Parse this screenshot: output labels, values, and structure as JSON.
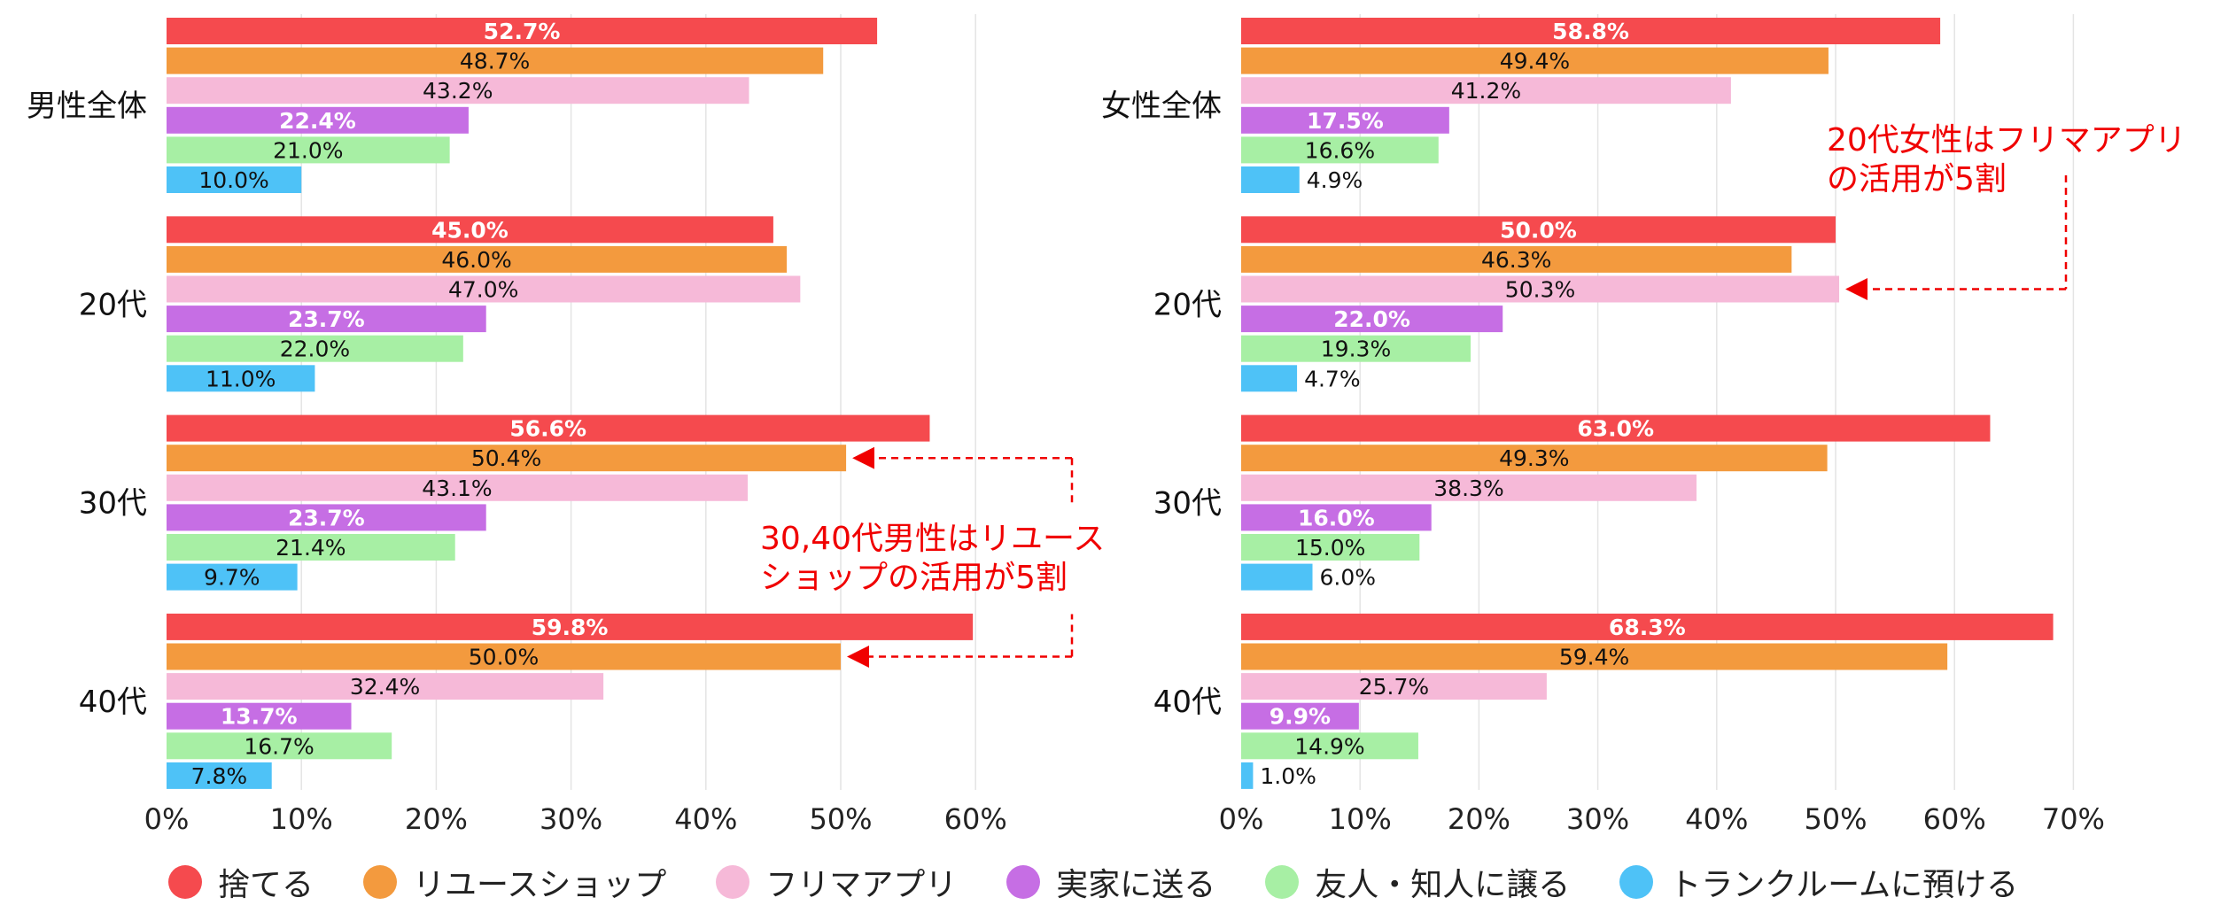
{
  "chart_data": {
    "type": "bar",
    "orientation": "horizontal",
    "series_names": [
      "捨てる",
      "リユースショップ",
      "フリマアプリ",
      "実家に送る",
      "友人・知人に譲る",
      "トランクルームに預ける"
    ],
    "colors": [
      "#f54a4e",
      "#f39a3e",
      "#f6b9d8",
      "#c66ee4",
      "#a7efa4",
      "#4ec2f7"
    ],
    "panels": [
      {
        "name": "male",
        "xlim": [
          0,
          60
        ],
        "xticks": [
          "0%",
          "10%",
          "20%",
          "30%",
          "40%",
          "50%",
          "60%"
        ],
        "groups": [
          {
            "label": "男性全体",
            "values": [
              52.7,
              48.7,
              43.2,
              22.4,
              21.0,
              10.0
            ],
            "value_labels": [
              "52.7%",
              "48.7%",
              "43.2%",
              "22.4%",
              "21.0%",
              "10.0%"
            ]
          },
          {
            "label": "20代",
            "values": [
              45.0,
              46.0,
              47.0,
              23.7,
              22.0,
              11.0
            ],
            "value_labels": [
              "45.0%",
              "46.0%",
              "47.0%",
              "23.7%",
              "22.0%",
              "11.0%"
            ]
          },
          {
            "label": "30代",
            "values": [
              56.6,
              50.4,
              43.1,
              23.7,
              21.4,
              9.7
            ],
            "value_labels": [
              "56.6%",
              "50.4%",
              "43.1%",
              "23.7%",
              "21.4%",
              "9.7%"
            ]
          },
          {
            "label": "40代",
            "values": [
              59.8,
              50.0,
              32.4,
              13.7,
              16.7,
              7.8
            ],
            "value_labels": [
              "59.8%",
              "50.0%",
              "32.4%",
              "13.7%",
              "16.7%",
              "7.8%"
            ]
          }
        ]
      },
      {
        "name": "female",
        "xlim": [
          0,
          70
        ],
        "xticks": [
          "0%",
          "10%",
          "20%",
          "30%",
          "40%",
          "50%",
          "60%",
          "70%"
        ],
        "groups": [
          {
            "label": "女性全体",
            "values": [
              58.8,
              49.4,
              41.2,
              17.5,
              16.6,
              4.9
            ],
            "value_labels": [
              "58.8%",
              "49.4%",
              "41.2%",
              "17.5%",
              "16.6%",
              "4.9%"
            ]
          },
          {
            "label": "20代",
            "values": [
              50.0,
              46.3,
              50.3,
              22.0,
              19.3,
              4.7
            ],
            "value_labels": [
              "50.0%",
              "46.3%",
              "50.3%",
              "22.0%",
              "19.3%",
              "4.7%"
            ]
          },
          {
            "label": "30代",
            "values": [
              63.0,
              49.3,
              38.3,
              16.0,
              15.0,
              6.0
            ],
            "value_labels": [
              "63.0%",
              "49.3%",
              "38.3%",
              "16.0%",
              "15.0%",
              "6.0%"
            ]
          },
          {
            "label": "40代",
            "values": [
              68.3,
              59.4,
              25.7,
              9.9,
              14.9,
              1.0
            ],
            "value_labels": [
              "68.3%",
              "59.4%",
              "25.7%",
              "9.9%",
              "14.9%",
              "1.0%"
            ]
          }
        ]
      }
    ],
    "annotations": [
      {
        "panel": "male",
        "lines": [
          "30,40代男性はリユース",
          "ショップの活用が5割"
        ],
        "targets": [
          {
            "group": 2,
            "series": 1
          },
          {
            "group": 3,
            "series": 1
          }
        ],
        "color": "#f00000"
      },
      {
        "panel": "female",
        "lines": [
          "20代女性はフリマアプリ",
          "の活用が5割"
        ],
        "targets": [
          {
            "group": 1,
            "series": 2
          }
        ],
        "color": "#f00000"
      }
    ]
  },
  "legend": {
    "items": [
      {
        "label": "捨てる",
        "color": "#f54a4e"
      },
      {
        "label": "リユースショップ",
        "color": "#f39a3e"
      },
      {
        "label": "フリマアプリ",
        "color": "#f6b9d8"
      },
      {
        "label": "実家に送る",
        "color": "#c66ee4"
      },
      {
        "label": "友人・知人に譲る",
        "color": "#a7efa4"
      },
      {
        "label": "トランクルームに預ける",
        "color": "#4ec2f7"
      }
    ]
  }
}
